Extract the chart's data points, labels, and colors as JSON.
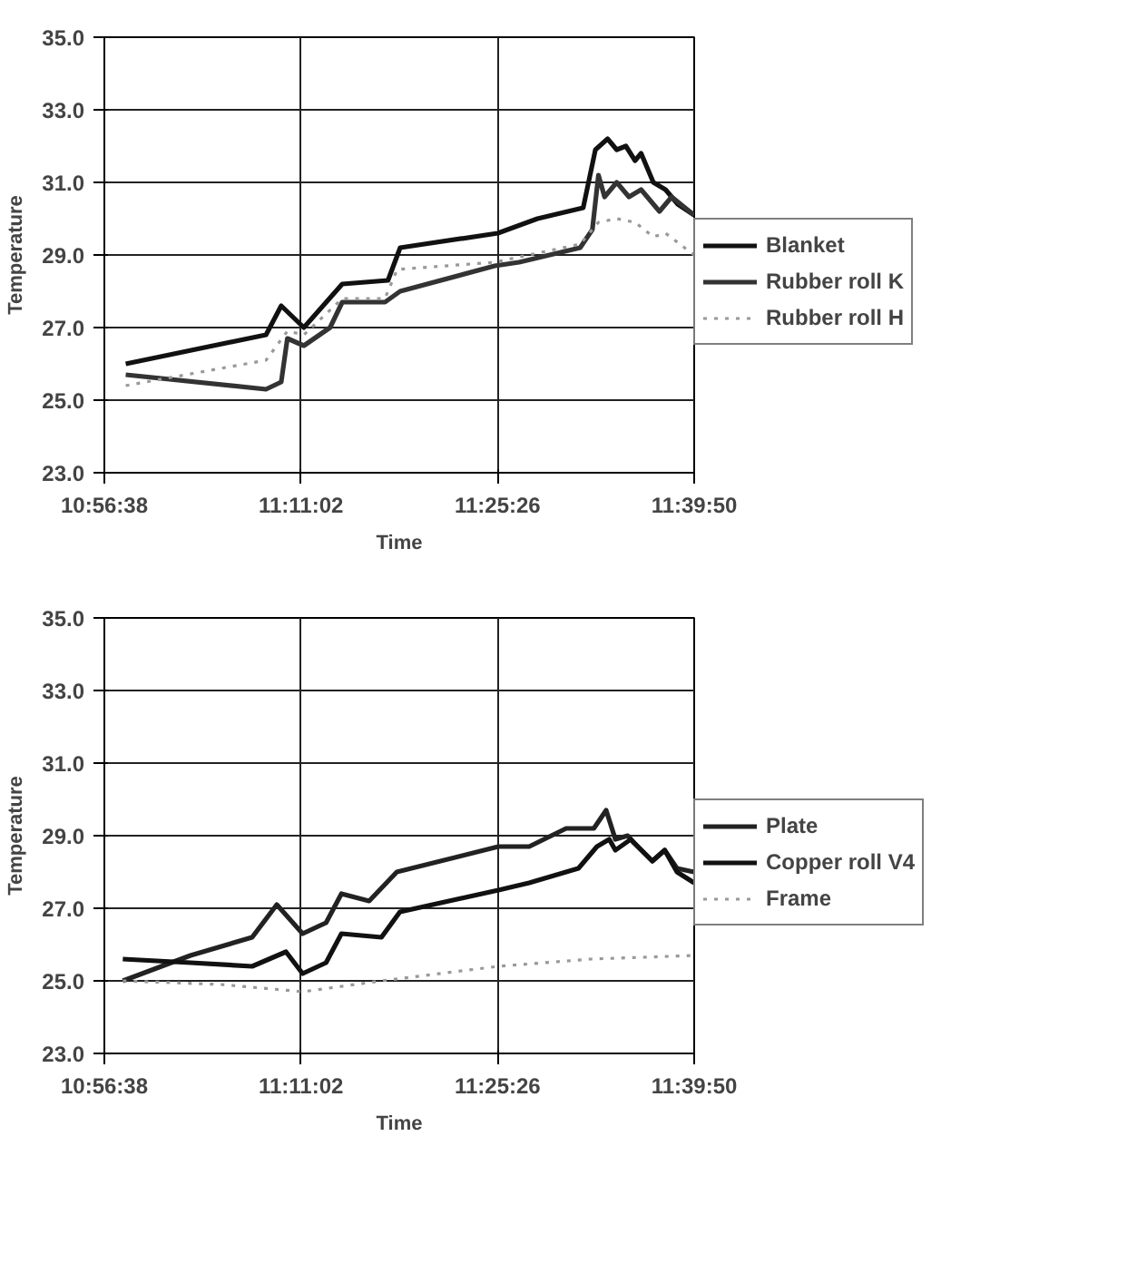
{
  "chart_data": [
    {
      "type": "line",
      "xlabel": "Time",
      "ylabel": "Temperature",
      "xlim": [
        10.94389,
        11.66389
      ],
      "ylim": [
        23,
        35
      ],
      "xticks": [
        {
          "value": 10.94389,
          "label": "10:56:38"
        },
        {
          "value": 11.18389,
          "label": "11:11:02"
        },
        {
          "value": 11.42389,
          "label": "11:25:26"
        },
        {
          "value": 11.66389,
          "label": "11:39:50"
        }
      ],
      "yticks": [
        {
          "value": 23,
          "label": "23.0"
        },
        {
          "value": 25,
          "label": "25.0"
        },
        {
          "value": 27,
          "label": "27.0"
        },
        {
          "value": 29,
          "label": "29.0"
        },
        {
          "value": 31,
          "label": "31.0"
        },
        {
          "value": 33,
          "label": "33.0"
        },
        {
          "value": 35,
          "label": "35.0"
        }
      ],
      "grid": true,
      "legend": "right",
      "marker": "none",
      "series": [
        {
          "name": "Blanket",
          "color": "#111111",
          "line_style": "solid",
          "x": [
            10.97,
            11.1412,
            11.1598,
            11.1874,
            11.2343,
            11.2901,
            11.305,
            11.4242,
            11.4726,
            11.5284,
            11.5433,
            11.5582,
            11.5693,
            11.5805,
            11.5917,
            11.5991,
            11.614,
            11.6289,
            11.6438,
            11.6638
          ],
          "values": [
            26.0,
            26.8,
            27.6,
            27.0,
            28.2,
            28.3,
            29.2,
            29.6,
            30.0,
            30.3,
            31.9,
            32.2,
            31.9,
            32.0,
            31.6,
            31.8,
            31.0,
            30.8,
            30.4,
            30.1
          ]
        },
        {
          "name": "Rubber roll K",
          "color": "#333333",
          "line_style": "solid",
          "x": [
            10.97,
            11.1412,
            11.1598,
            11.1673,
            11.1874,
            11.2194,
            11.2343,
            11.2864,
            11.305,
            11.4204,
            11.4502,
            11.5247,
            11.5396,
            11.547,
            11.5545,
            11.5693,
            11.5843,
            11.5991,
            11.6215,
            11.6364,
            11.6638
          ],
          "values": [
            25.7,
            25.3,
            25.5,
            26.7,
            26.5,
            27.0,
            27.7,
            27.7,
            28.0,
            28.7,
            28.8,
            29.2,
            29.7,
            31.2,
            30.6,
            31.0,
            30.6,
            30.8,
            30.2,
            30.6,
            30.1
          ]
        },
        {
          "name": "Rubber roll H",
          "color": "#999999",
          "line_style": "dotted",
          "x": [
            10.97,
            11.1412,
            11.1673,
            11.1874,
            11.2343,
            11.2864,
            11.3013,
            11.4204,
            11.5247,
            11.547,
            11.5693,
            11.5917,
            11.614,
            11.6289,
            11.6638
          ],
          "values": [
            25.4,
            26.1,
            26.9,
            26.8,
            27.8,
            27.8,
            28.6,
            28.8,
            29.3,
            29.9,
            30.0,
            29.9,
            29.5,
            29.6,
            29.0
          ]
        }
      ]
    },
    {
      "type": "line",
      "xlabel": "Time",
      "ylabel": "Temperature",
      "xlim": [
        10.94389,
        11.66389
      ],
      "ylim": [
        23,
        35
      ],
      "xticks": [
        {
          "value": 10.94389,
          "label": "10:56:38"
        },
        {
          "value": 11.18389,
          "label": "11:11:02"
        },
        {
          "value": 11.42389,
          "label": "11:25:26"
        },
        {
          "value": 11.66389,
          "label": "11:39:50"
        }
      ],
      "yticks": [
        {
          "value": 23,
          "label": "23.0"
        },
        {
          "value": 25,
          "label": "25.0"
        },
        {
          "value": 27,
          "label": "27.0"
        },
        {
          "value": 29,
          "label": "29.0"
        },
        {
          "value": 31,
          "label": "31.0"
        },
        {
          "value": 33,
          "label": "33.0"
        },
        {
          "value": 35,
          "label": "35.0"
        }
      ],
      "grid": true,
      "legend": "right",
      "marker": "none",
      "series": [
        {
          "name": "Plate",
          "color": "#222222",
          "line_style": "solid",
          "x": [
            10.9664,
            11.0491,
            11.1243,
            11.1544,
            11.1859,
            11.2145,
            11.2333,
            11.2671,
            11.3009,
            11.4249,
            11.4625,
            11.5076,
            11.5414,
            11.5564,
            11.5677,
            11.5827,
            11.5903,
            11.6128,
            11.6279,
            11.6429,
            11.6638
          ],
          "values": [
            25.0,
            25.7,
            26.2,
            27.1,
            26.3,
            26.6,
            27.4,
            27.2,
            28.0,
            28.7,
            28.7,
            29.2,
            29.2,
            29.7,
            28.9,
            29.0,
            28.8,
            28.3,
            28.6,
            28.1,
            28.0
          ]
        },
        {
          "name": "Copper roll V4",
          "color": "#111111",
          "line_style": "solid",
          "x": [
            10.9664,
            11.0491,
            11.1243,
            11.1656,
            11.1859,
            11.2145,
            11.2333,
            11.2821,
            11.3047,
            11.4249,
            11.4625,
            11.5226,
            11.5452,
            11.5602,
            11.5677,
            11.5865,
            11.6128,
            11.6279,
            11.6429,
            11.6638
          ],
          "values": [
            25.6,
            25.5,
            25.4,
            25.8,
            25.2,
            25.5,
            26.3,
            26.2,
            26.9,
            27.5,
            27.7,
            28.1,
            28.7,
            28.9,
            28.6,
            28.9,
            28.3,
            28.6,
            28.0,
            27.7
          ]
        },
        {
          "name": "Frame",
          "color": "#999999",
          "line_style": "dotted",
          "x": [
            10.9664,
            11.0867,
            11.1859,
            11.2821,
            11.4249,
            11.5377,
            11.6638
          ],
          "values": [
            25.0,
            24.9,
            24.7,
            25.0,
            25.4,
            25.6,
            25.7
          ]
        }
      ]
    }
  ]
}
